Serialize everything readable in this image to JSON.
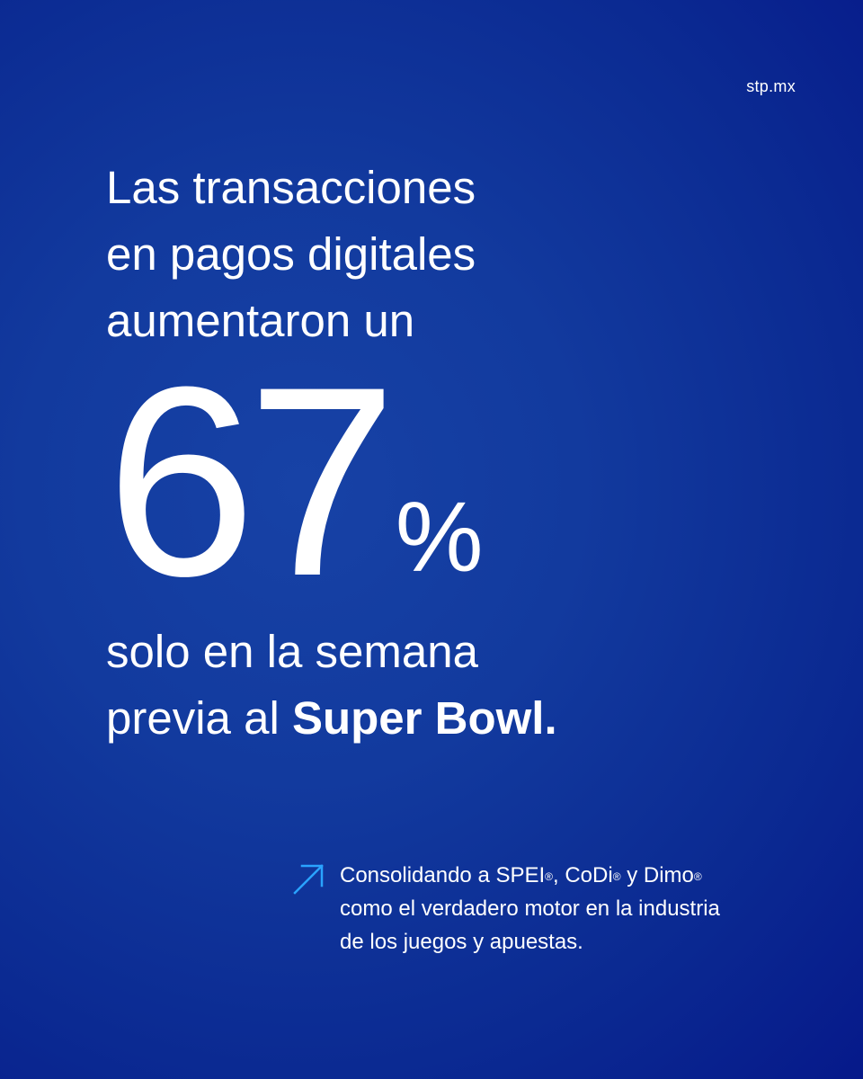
{
  "site": "stp.mx",
  "headline": [
    "Las transacciones",
    "en pagos digitales",
    "aumentaron un"
  ],
  "stat": {
    "number": "67",
    "unit": "%"
  },
  "subline": {
    "line1": "solo en la semana",
    "line2_prefix": "previa al ",
    "line2_bold": "Super Bowl."
  },
  "note": {
    "line1_a": "Consolidando a SPEI",
    "reg": "®",
    "line1_b": ", CoDi",
    "line1_c": " y Dimo",
    "line2": "como el verdadero motor en la industria",
    "line3": "de los juegos y apuestas."
  },
  "icons": {
    "note_arrow": "arrow-up-right-icon"
  },
  "colors": {
    "background": "#123a9e",
    "text": "#ffffff",
    "accent": "#2aa3ff"
  }
}
